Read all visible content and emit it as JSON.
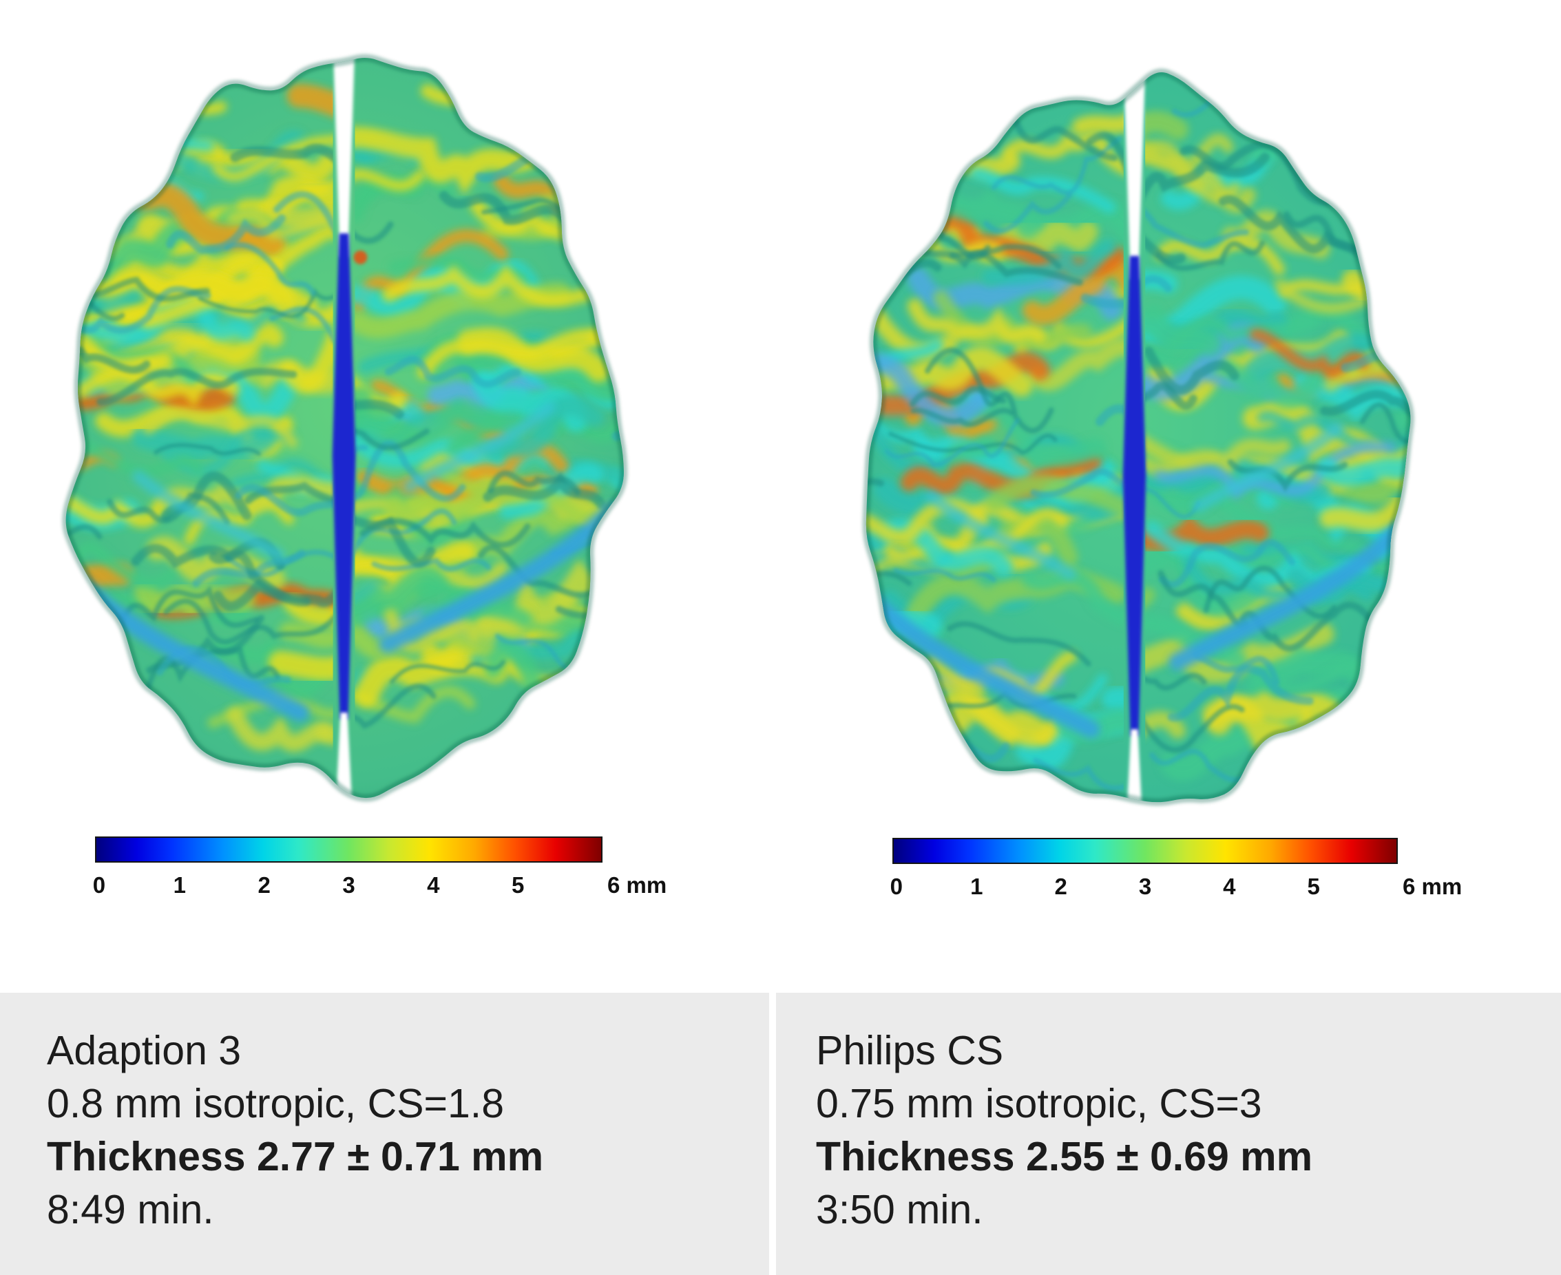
{
  "captions": {
    "left": {
      "method": "Adaption 3",
      "protocol": "0.8 mm isotropic, CS=1.8",
      "thickness": "Thickness 2.77 ± 0.71 mm",
      "duration": "8:49 min."
    },
    "right": {
      "method": "Philips CS",
      "protocol": "0.75 mm isotropic, CS=3",
      "thickness": "Thickness 2.55 ± 0.69 mm",
      "duration": "3:50 min."
    }
  },
  "colorbar": {
    "ticks": [
      "0",
      "1",
      "2",
      "3",
      "4",
      "5",
      "6 mm"
    ],
    "range_mm": [
      0,
      6
    ],
    "unit": "mm",
    "colormap": "jet"
  },
  "colors": {
    "panel_bg": "#ebebeb",
    "caption_text": "#1c1c1c",
    "fissure_blue": "#1a27cf",
    "colorbar_border": "#151515"
  }
}
